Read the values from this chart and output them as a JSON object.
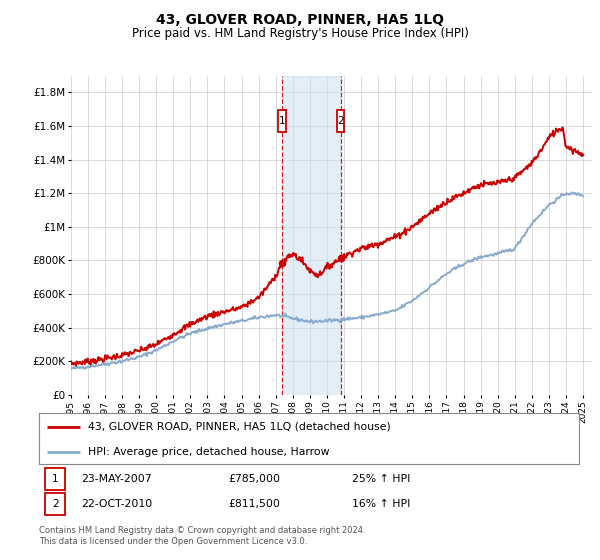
{
  "title": "43, GLOVER ROAD, PINNER, HA5 1LQ",
  "subtitle": "Price paid vs. HM Land Registry's House Price Index (HPI)",
  "legend_line1": "43, GLOVER ROAD, PINNER, HA5 1LQ (detached house)",
  "legend_line2": "HPI: Average price, detached house, Harrow",
  "annotation1_date": "23-MAY-2007",
  "annotation1_price": "£785,000",
  "annotation1_hpi": "25% ↑ HPI",
  "annotation2_date": "22-OCT-2010",
  "annotation2_price": "£811,500",
  "annotation2_hpi": "16% ↑ HPI",
  "footer": "Contains HM Land Registry data © Crown copyright and database right 2024.\nThis data is licensed under the Open Government Licence v3.0.",
  "price_color": "#cc0000",
  "hpi_color": "#88aacc",
  "background_color": "#ffffff",
  "grid_color": "#cccccc",
  "annotation_box_color": "#cc0000",
  "shade_color": "#cce0f0",
  "ylim_min": 0,
  "ylim_max": 1900000,
  "yticks": [
    0,
    200000,
    400000,
    600000,
    800000,
    1000000,
    1200000,
    1400000,
    1600000,
    1800000
  ],
  "ytick_labels": [
    "£0",
    "£200K",
    "£400K",
    "£600K",
    "£800K",
    "£1M",
    "£1.2M",
    "£1.4M",
    "£1.6M",
    "£1.8M"
  ],
  "sale1_x": 2007.38,
  "sale1_y": 785000,
  "sale2_x": 2010.8,
  "sale2_y": 811500,
  "vline1_x": 2007.38,
  "vline2_x": 2010.8,
  "xmin": 1995.0,
  "xmax": 2025.5,
  "xtick_years": [
    1995,
    1996,
    1997,
    1998,
    1999,
    2000,
    2001,
    2002,
    2003,
    2004,
    2005,
    2006,
    2007,
    2008,
    2009,
    2010,
    2011,
    2012,
    2013,
    2014,
    2015,
    2016,
    2017,
    2018,
    2019,
    2020,
    2021,
    2022,
    2023,
    2024,
    2025
  ]
}
